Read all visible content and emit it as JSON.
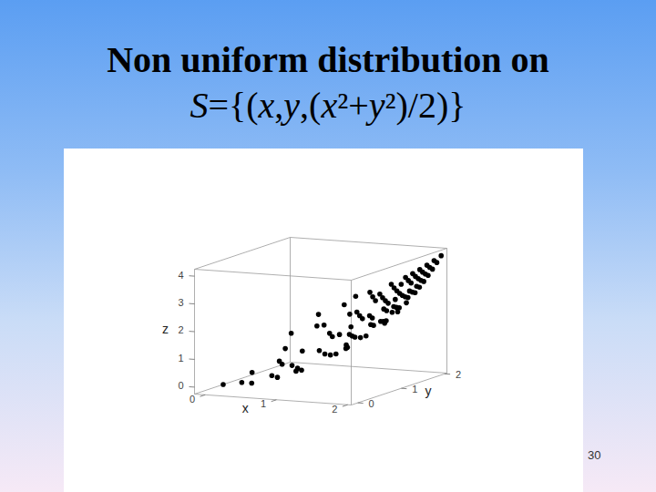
{
  "chart_data": {
    "type": "scatter3d",
    "title": "Non uniform distribution on",
    "subtitle": "S={(x,y,(x²+y²)/2)}",
    "annotations": [
      "30"
    ],
    "xlabel": "x",
    "ylabel": "y",
    "zlabel": "z",
    "xlim": [
      -0.15,
      2.05
    ],
    "ylim": [
      -0.15,
      2.05
    ],
    "zlim": [
      -0.25,
      4.25
    ],
    "xticks": [
      0,
      1,
      2
    ],
    "yticks": [
      0,
      1,
      2
    ],
    "zticks": [
      0,
      1,
      2,
      3,
      4
    ],
    "color": "#000000",
    "marker": "circle",
    "x": [
      0.1,
      0.3,
      0.2,
      0.5,
      0.6,
      0.4,
      0.8,
      0.7,
      0.9,
      0.3,
      1.0,
      1.1,
      0.6,
      0.9,
      1.2,
      0.2,
      1.3,
      0.8,
      1.4,
      1.0,
      1.5,
      0.5,
      1.2,
      1.6,
      0.9,
      1.3,
      1.7,
      1.5,
      1.1,
      1.8,
      0.4,
      1.6,
      1.4,
      1.7,
      1.9,
      1.2,
      0.7,
      1.8,
      1.6,
      1.9,
      1.5,
      1.7,
      2.0,
      1.3,
      1.8,
      2.0,
      1.6,
      1.9,
      2.0,
      1.9,
      2.0,
      1.8,
      1.7,
      1.9,
      1.8,
      1.7,
      2.0,
      1.4,
      1.9,
      1.5,
      1.6,
      1.1,
      2.0,
      1.0,
      1.8,
      1.9,
      1.5,
      1.8,
      1.6,
      1.9,
      1.7,
      1.4,
      1.2,
      1.0,
      2.0,
      0.8,
      1.3,
      1.8,
      2.0,
      1.8,
      1.7,
      2.0,
      1.1,
      1.3,
      0.6,
      1.6,
      1.9,
      1.6,
      1.5,
      2.0,
      1.5,
      1.2,
      0.9,
      1.4,
      0.5
    ],
    "y": [
      0.1,
      0.2,
      0.6,
      0.1,
      0.4,
      0.9,
      0.2,
      0.7,
      0.5,
      1.2,
      0.3,
      0.8,
      1.1,
      1.0,
      0.1,
      1.5,
      0.6,
      1.4,
      1.0,
      1.3,
      0.4,
      1.6,
      1.2,
      0.8,
      1.7,
      1.5,
      0.3,
      1.2,
      1.6,
      0.6,
      1.8,
      1.4,
      1.7,
      1.1,
      0.9,
      1.8,
      1.9,
      1.3,
      1.7,
      1.5,
      1.9,
      1.6,
      1.2,
      2.0,
      1.8,
      1.6,
      2.0,
      1.9,
      1.9,
      2.0,
      2.0,
      1.9,
      1.9,
      1.7,
      1.6,
      1.8,
      1.4,
      1.9,
      1.2,
      1.6,
      1.1,
      1.9,
      1.0,
      2.0,
      1.0,
      1.8,
      1.8,
      1.5,
      1.9,
      1.6,
      1.4,
      1.4,
      1.5,
      1.7,
      0.7,
      2.0,
      1.8,
      1.2,
      1.8,
      2.0,
      2.0,
      1.7,
      1.4,
      1.1,
      1.6,
      0.5,
      1.4,
      1.6,
      1.5,
      1.5,
      2.0,
      1.9,
      1.3,
      0.8,
      0.8
    ],
    "z": [
      0.01,
      0.065,
      0.2,
      0.13,
      0.26,
      0.485,
      0.34,
      0.49,
      0.53,
      0.765,
      0.545,
      0.925,
      0.785,
      0.905,
      0.725,
      1.145,
      1.025,
      1.3,
      1.48,
      1.345,
      1.205,
      1.405,
      1.44,
      1.6,
      1.85,
      1.97,
      1.49,
      1.845,
      1.885,
      1.8,
      1.7,
      2.26,
      2.425,
      2.05,
      2.21,
      2.34,
      2.05,
      2.465,
      2.725,
      2.93,
      2.93,
      2.725,
      2.72,
      2.845,
      3.24,
      3.28,
      3.28,
      3.61,
      3.805,
      3.805,
      4,
      3.425,
      3.25,
      3.25,
      2.9,
      3.065,
      2.98,
      2.785,
      2.525,
      2.405,
      1.885,
      2.41,
      2.5,
      2.5,
      2.12,
      3.425,
      2.745,
      2.745,
      3.085,
      3.085,
      2.425,
      1.96,
      1.845,
      1.945,
      2.245,
      2.32,
      2.465,
      2.34,
      3.62,
      3.62,
      3.445,
      3.445,
      1.585,
      1.45,
      1.46,
      1.405,
      2.785,
      2.56,
      2.25,
      3.125,
      3.125,
      2.525,
      1.25,
      1.3,
      0.445
    ]
  }
}
